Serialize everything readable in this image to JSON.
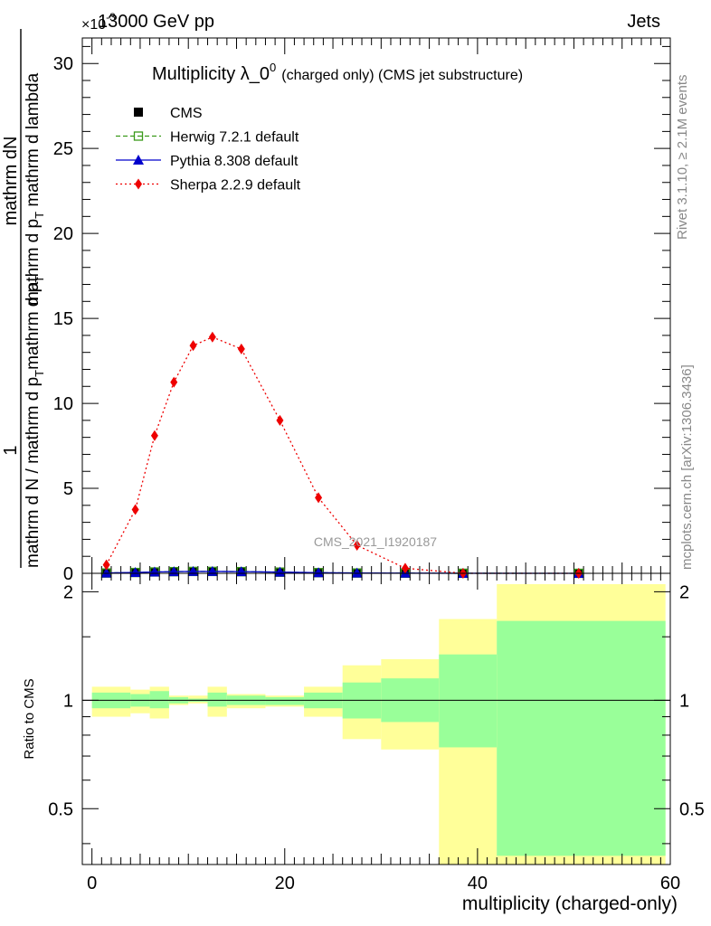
{
  "header": {
    "energy_label": "13000 GeV pp",
    "process_label": "Jets",
    "exponent_label": "×10",
    "exponent_power": "-3"
  },
  "side_labels": {
    "rivet": "Rivet 3.1.10, ≥ 2.1M events",
    "mcplots": "mcplots.cern.ch [arXiv:1306.3436]"
  },
  "watermark": "CMS_2021_I1920187",
  "chart_data": [
    {
      "type": "line",
      "panel": "main",
      "title_main": "Multiplicity λ_0",
      "title_sup": "0",
      "title_small": "(charged only) (CMS jet substructure)",
      "ylabel_num": "mathrm dN",
      "ylabel_den": "mathrm d p",
      "ylabel_den_sub": "T",
      "ylabel_den_rest": " mathrm d lambda",
      "ylabel_pre_num": "1",
      "ylabel_pre_den": "mathrm d N / mathrm d p",
      "ylabel_pre_den_sub": "T",
      "ylabel_pre_den_rest": "mathrm d p",
      "ylabel_pre_den_sub2": "T",
      "xlim": [
        -1,
        60
      ],
      "ylim": [
        0,
        31.5
      ],
      "yticks": [
        0,
        5,
        10,
        15,
        20,
        25,
        30
      ],
      "ytick_labels": [
        "0",
        "5",
        "10",
        "15",
        "20",
        "25",
        "30"
      ],
      "legend_position": "top-left",
      "series": [
        {
          "name": "CMS",
          "color": "#000000",
          "marker": "square",
          "x": [
            1.5,
            4.5,
            6.5,
            8.5,
            10.5,
            12.5,
            15.5,
            19.5,
            23.5,
            27.5,
            32.5,
            38.5,
            50.5
          ],
          "y": [
            0.02,
            0.05,
            0.08,
            0.1,
            0.11,
            0.11,
            0.1,
            0.07,
            0.04,
            0.02,
            0.01,
            0.003,
            0.001
          ]
        },
        {
          "name": "Herwig 7.2.1 default",
          "color": "#3a9a1a",
          "marker": "open-square",
          "x": [
            1.5,
            4.5,
            6.5,
            8.5,
            10.5,
            12.5,
            15.5,
            19.5,
            23.5,
            27.5,
            32.5,
            38.5,
            50.5
          ],
          "y": [
            0.02,
            0.05,
            0.08,
            0.1,
            0.11,
            0.11,
            0.1,
            0.07,
            0.04,
            0.02,
            0.01,
            0.003,
            0.001
          ]
        },
        {
          "name": "Pythia 8.308 default",
          "color": "#0000cc",
          "marker": "triangle",
          "x": [
            1.5,
            4.5,
            6.5,
            8.5,
            10.5,
            12.5,
            15.5,
            19.5,
            23.5,
            27.5,
            32.5,
            38.5,
            50.5
          ],
          "y": [
            0.02,
            0.05,
            0.08,
            0.1,
            0.11,
            0.11,
            0.1,
            0.07,
            0.04,
            0.02,
            0.01,
            0.003,
            0.001
          ]
        },
        {
          "name": "Sherpa 2.2.9 default",
          "color": "#ee0000",
          "marker": "diamond",
          "x": [
            1.5,
            4.5,
            6.5,
            8.5,
            10.5,
            12.5,
            15.5,
            19.5,
            23.5,
            27.5,
            32.5,
            38.5,
            50.5
          ],
          "y": [
            0.5,
            3.75,
            8.1,
            11.25,
            13.4,
            13.9,
            13.2,
            9.0,
            4.45,
            1.65,
            0.3,
            0.0,
            0.0
          ]
        }
      ]
    },
    {
      "type": "area",
      "panel": "ratio",
      "ylabel": "Ratio to CMS",
      "xlabel": "multiplicity (charged-only)",
      "xlim": [
        -1,
        60
      ],
      "ylim": [
        0.35,
        2.25
      ],
      "xticks": [
        0,
        20,
        40,
        60
      ],
      "xtick_labels": [
        "0",
        "20",
        "40",
        "60"
      ],
      "yticks": [
        0.5,
        1,
        2
      ],
      "ytick_labels": [
        "0.5",
        "1",
        "2"
      ],
      "bands": [
        {
          "x0": 0,
          "x1": 4,
          "outer": [
            0.9,
            1.09
          ],
          "inner": [
            0.95,
            1.05
          ]
        },
        {
          "x0": 4,
          "x1": 6,
          "outer": [
            0.92,
            1.07
          ],
          "inner": [
            0.96,
            1.04
          ]
        },
        {
          "x0": 6,
          "x1": 8,
          "outer": [
            0.89,
            1.09
          ],
          "inner": [
            0.95,
            1.06
          ]
        },
        {
          "x0": 8,
          "x1": 10,
          "outer": [
            0.97,
            1.03
          ],
          "inner": [
            0.98,
            1.02
          ]
        },
        {
          "x0": 10,
          "x1": 12,
          "outer": [
            0.98,
            1.03
          ],
          "inner": [
            0.99,
            1.01
          ]
        },
        {
          "x0": 12,
          "x1": 14,
          "outer": [
            0.9,
            1.09
          ],
          "inner": [
            0.96,
            1.05
          ]
        },
        {
          "x0": 14,
          "x1": 18,
          "outer": [
            0.95,
            1.04
          ],
          "inner": [
            0.97,
            1.03
          ]
        },
        {
          "x0": 18,
          "x1": 22,
          "outer": [
            0.96,
            1.03
          ],
          "inner": [
            0.97,
            1.02
          ]
        },
        {
          "x0": 22,
          "x1": 26,
          "outer": [
            0.9,
            1.09
          ],
          "inner": [
            0.95,
            1.05
          ]
        },
        {
          "x0": 26,
          "x1": 30,
          "outer": [
            0.78,
            1.25
          ],
          "inner": [
            0.89,
            1.12
          ]
        },
        {
          "x0": 30,
          "x1": 36,
          "outer": [
            0.73,
            1.3
          ],
          "inner": [
            0.87,
            1.15
          ]
        },
        {
          "x0": 36,
          "x1": 42,
          "outer": [
            0.35,
            1.68
          ],
          "inner": [
            0.74,
            1.34
          ]
        },
        {
          "x0": 42,
          "x1": 59.5,
          "outer": [
            0.35,
            2.1
          ],
          "inner": [
            0.37,
            1.66
          ]
        }
      ],
      "band_colors": {
        "outer": "#ffff99",
        "inner": "#99ff99"
      },
      "reference_line": 1
    }
  ]
}
